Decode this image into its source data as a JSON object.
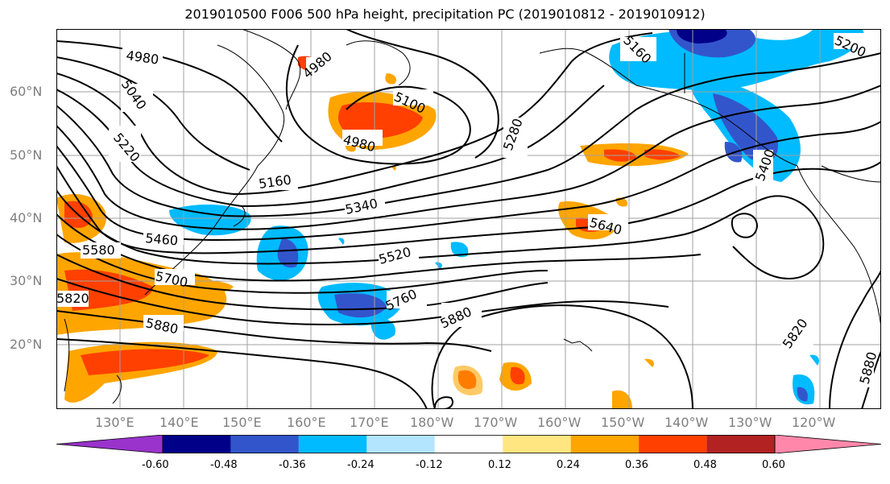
{
  "title": "2019010500 F006 500 hPa height, precipitation PC (2019010812 - 2019010912)",
  "lat_labels": [
    "60°N",
    "50°N",
    "40°N",
    "30°N",
    "20°N"
  ],
  "lon_labels": [
    "130°E",
    "140°E",
    "150°E",
    "160°E",
    "170°E",
    "180°W",
    "170°W",
    "160°W",
    "150°W",
    "140°W",
    "130°W",
    "120°W"
  ],
  "contour_labels": [
    "4980",
    "4980",
    "4980",
    "5040",
    "5100",
    "5160",
    "5160",
    "5200",
    "5220",
    "5280",
    "5340",
    "5400",
    "5460",
    "5520",
    "5580",
    "5640",
    "5700",
    "5760",
    "5820",
    "5820",
    "5880",
    "5880",
    "5880"
  ],
  "colorbar": {
    "ticks": [
      "-0.60",
      "-0.48",
      "-0.36",
      "-0.24",
      "-0.12",
      "0.12",
      "0.24",
      "0.36",
      "0.48",
      "0.60"
    ],
    "colors": [
      "#9933cc",
      "#000088",
      "#3355cc",
      "#00bbff",
      "#b3e5ff",
      "#ffffff",
      "#ffe680",
      "#ffa500",
      "#ff4000",
      "#b22222",
      "#ff88aa"
    ]
  },
  "colors": {
    "contour": "#000000",
    "grid": "#a0a0a0",
    "axis_label": "#7f7f7f"
  }
}
